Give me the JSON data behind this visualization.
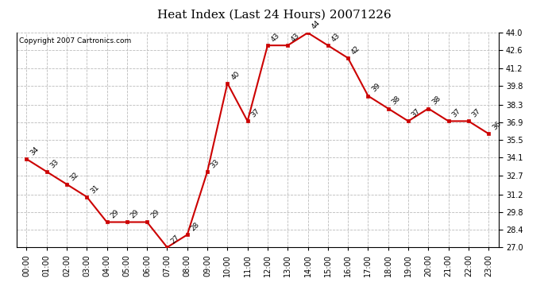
{
  "title": "Heat Index (Last 24 Hours) 20071226",
  "copyright": "Copyright 2007 Cartronics.com",
  "hours": [
    "00:00",
    "01:00",
    "02:00",
    "03:00",
    "04:00",
    "05:00",
    "06:00",
    "07:00",
    "08:00",
    "09:00",
    "10:00",
    "11:00",
    "12:00",
    "13:00",
    "14:00",
    "15:00",
    "16:00",
    "17:00",
    "18:00",
    "19:00",
    "20:00",
    "21:00",
    "22:00",
    "23:00"
  ],
  "values": [
    34,
    33,
    32,
    31,
    29,
    29,
    29,
    27,
    28,
    33,
    40,
    37,
    43,
    43,
    44,
    43,
    42,
    39,
    38,
    37,
    38,
    37,
    37,
    36
  ],
  "ylim_min": 27.0,
  "ylim_max": 44.0,
  "yticks": [
    27.0,
    28.4,
    29.8,
    31.2,
    32.7,
    34.1,
    35.5,
    36.9,
    38.3,
    39.8,
    41.2,
    42.6,
    44.0
  ],
  "line_color": "#cc0000",
  "marker_color": "#cc0000",
  "bg_color": "#ffffff",
  "grid_color": "#bbbbbb",
  "title_fontsize": 11,
  "copyright_fontsize": 6.5,
  "label_fontsize": 6.5,
  "tick_fontsize": 7
}
